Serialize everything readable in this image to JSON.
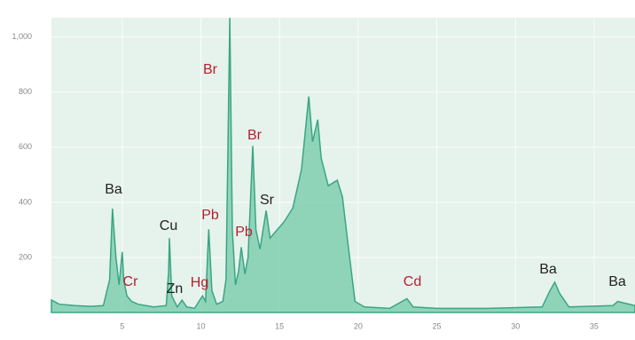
{
  "chart_data": {
    "type": "area",
    "x": [
      0.5,
      1,
      2,
      3,
      3.8,
      4.2,
      4.38,
      4.6,
      4.8,
      5.0,
      5.1,
      5.3,
      5.6,
      6,
      7,
      7.8,
      7.95,
      8.0,
      8.15,
      8.5,
      8.8,
      9.1,
      9.6,
      10.1,
      10.3,
      10.5,
      10.7,
      11.0,
      11.4,
      11.6,
      11.84,
      12.0,
      12.2,
      12.4,
      12.57,
      12.8,
      13.0,
      13.3,
      13.5,
      13.76,
      14.15,
      14.4,
      14.7,
      15.3,
      15.85,
      16.4,
      16.86,
      17.1,
      17.43,
      17.65,
      18.1,
      18.67,
      19.0,
      19.35,
      19.8,
      20.4,
      22,
      23.1,
      23.5,
      25,
      28.3,
      31.7,
      32.2,
      32.5,
      32.8,
      33.4,
      36.2,
      36.5,
      37.6
    ],
    "values": [
      45,
      30,
      25,
      22,
      25,
      120,
      377,
      200,
      100,
      220,
      117,
      60,
      40,
      30,
      20,
      25,
      150,
      270,
      60,
      20,
      45,
      20,
      15,
      60,
      40,
      302,
      80,
      30,
      40,
      120,
      1070,
      300,
      100,
      150,
      237,
      140,
      200,
      605,
      300,
      230,
      370,
      270,
      290,
      330,
      380,
      520,
      784,
      620,
      700,
      560,
      460,
      480,
      420,
      250,
      40,
      20,
      15,
      50,
      20,
      15,
      15,
      20,
      80,
      110,
      70,
      20,
      25,
      40,
      25
    ],
    "color": "#3aa585",
    "xlim": [
      0.5,
      37.6
    ],
    "ylim": [
      0,
      1070
    ],
    "xticks": [
      5,
      10,
      15,
      20,
      25,
      30,
      35
    ],
    "yticks": [
      200,
      400,
      600,
      {
        "value": 800,
        "label": "800"
      },
      {
        "value": 1000,
        "label": "1,000"
      }
    ],
    "grid": true,
    "annotations": [
      {
        "text": "Ba",
        "color": "#222222"
      },
      {
        "text": "Cr",
        "color": "#b5202e"
      },
      {
        "text": "Cu",
        "color": "#222222"
      },
      {
        "text": "Zn",
        "color": "#222222"
      },
      {
        "text": "Hg",
        "color": "#b5202e"
      },
      {
        "text": "Pb",
        "color": "#b5202e"
      },
      {
        "text": "Br",
        "color": "#b5202e"
      },
      {
        "text": "Br",
        "color": "#b5202e"
      },
      {
        "text": "Pb",
        "color": "#b5202e"
      },
      {
        "text": "Sr",
        "color": "#222222"
      },
      {
        "text": "Cd",
        "color": "#b5202e"
      },
      {
        "text": "Ba",
        "color": "#222222"
      },
      {
        "text": "Ba",
        "color": "#222222"
      }
    ]
  }
}
